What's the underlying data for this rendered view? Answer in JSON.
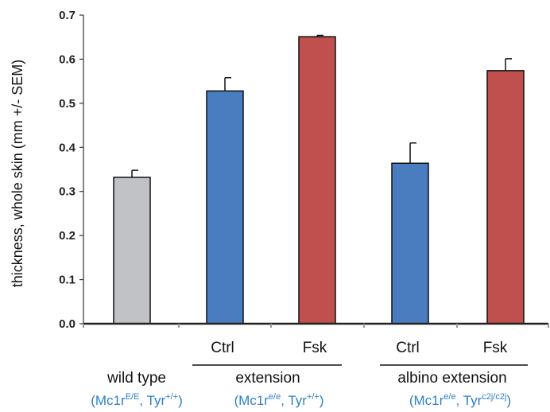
{
  "chart_data": {
    "type": "bar",
    "ylabel": "thickness, whole skin (mm +/- SEM)",
    "ylim": [
      0,
      0.7
    ],
    "y_ticks": [
      "0.0",
      "0.1",
      "0.2",
      "0.3",
      "0.4",
      "0.5",
      "0.6",
      "0.7"
    ],
    "grid": false,
    "categories": [
      "wild type",
      "Ctrl",
      "Fsk",
      "Ctrl",
      "Fsk"
    ],
    "values": [
      0.332,
      0.528,
      0.651,
      0.364,
      0.574
    ],
    "errors": [
      0.016,
      0.03,
      0.003,
      0.046,
      0.027
    ],
    "colors": [
      "#c0c2c5",
      "#4a7dbf",
      "#c0504d",
      "#4a7dbf",
      "#c0504d"
    ],
    "groups": [
      {
        "label": "wild type",
        "genotype_prefix": "(Mc1r",
        "genotype_sup1": "E/E",
        "genotype_mid": ", Tyr",
        "genotype_sup2": "+/+",
        "genotype_suffix": ")"
      },
      {
        "label": "extension",
        "genotype_prefix": "(Mc1r",
        "genotype_sup1": "e/e",
        "genotype_mid": ", Tyr",
        "genotype_sup2": "+/+",
        "genotype_suffix": ")"
      },
      {
        "label": "albino extension",
        "genotype_prefix": "(Mc1r",
        "genotype_sup1": "e/e",
        "genotype_mid": ", Tyr",
        "genotype_sup2": "c2j/c2j",
        "genotype_suffix": ")"
      }
    ]
  }
}
